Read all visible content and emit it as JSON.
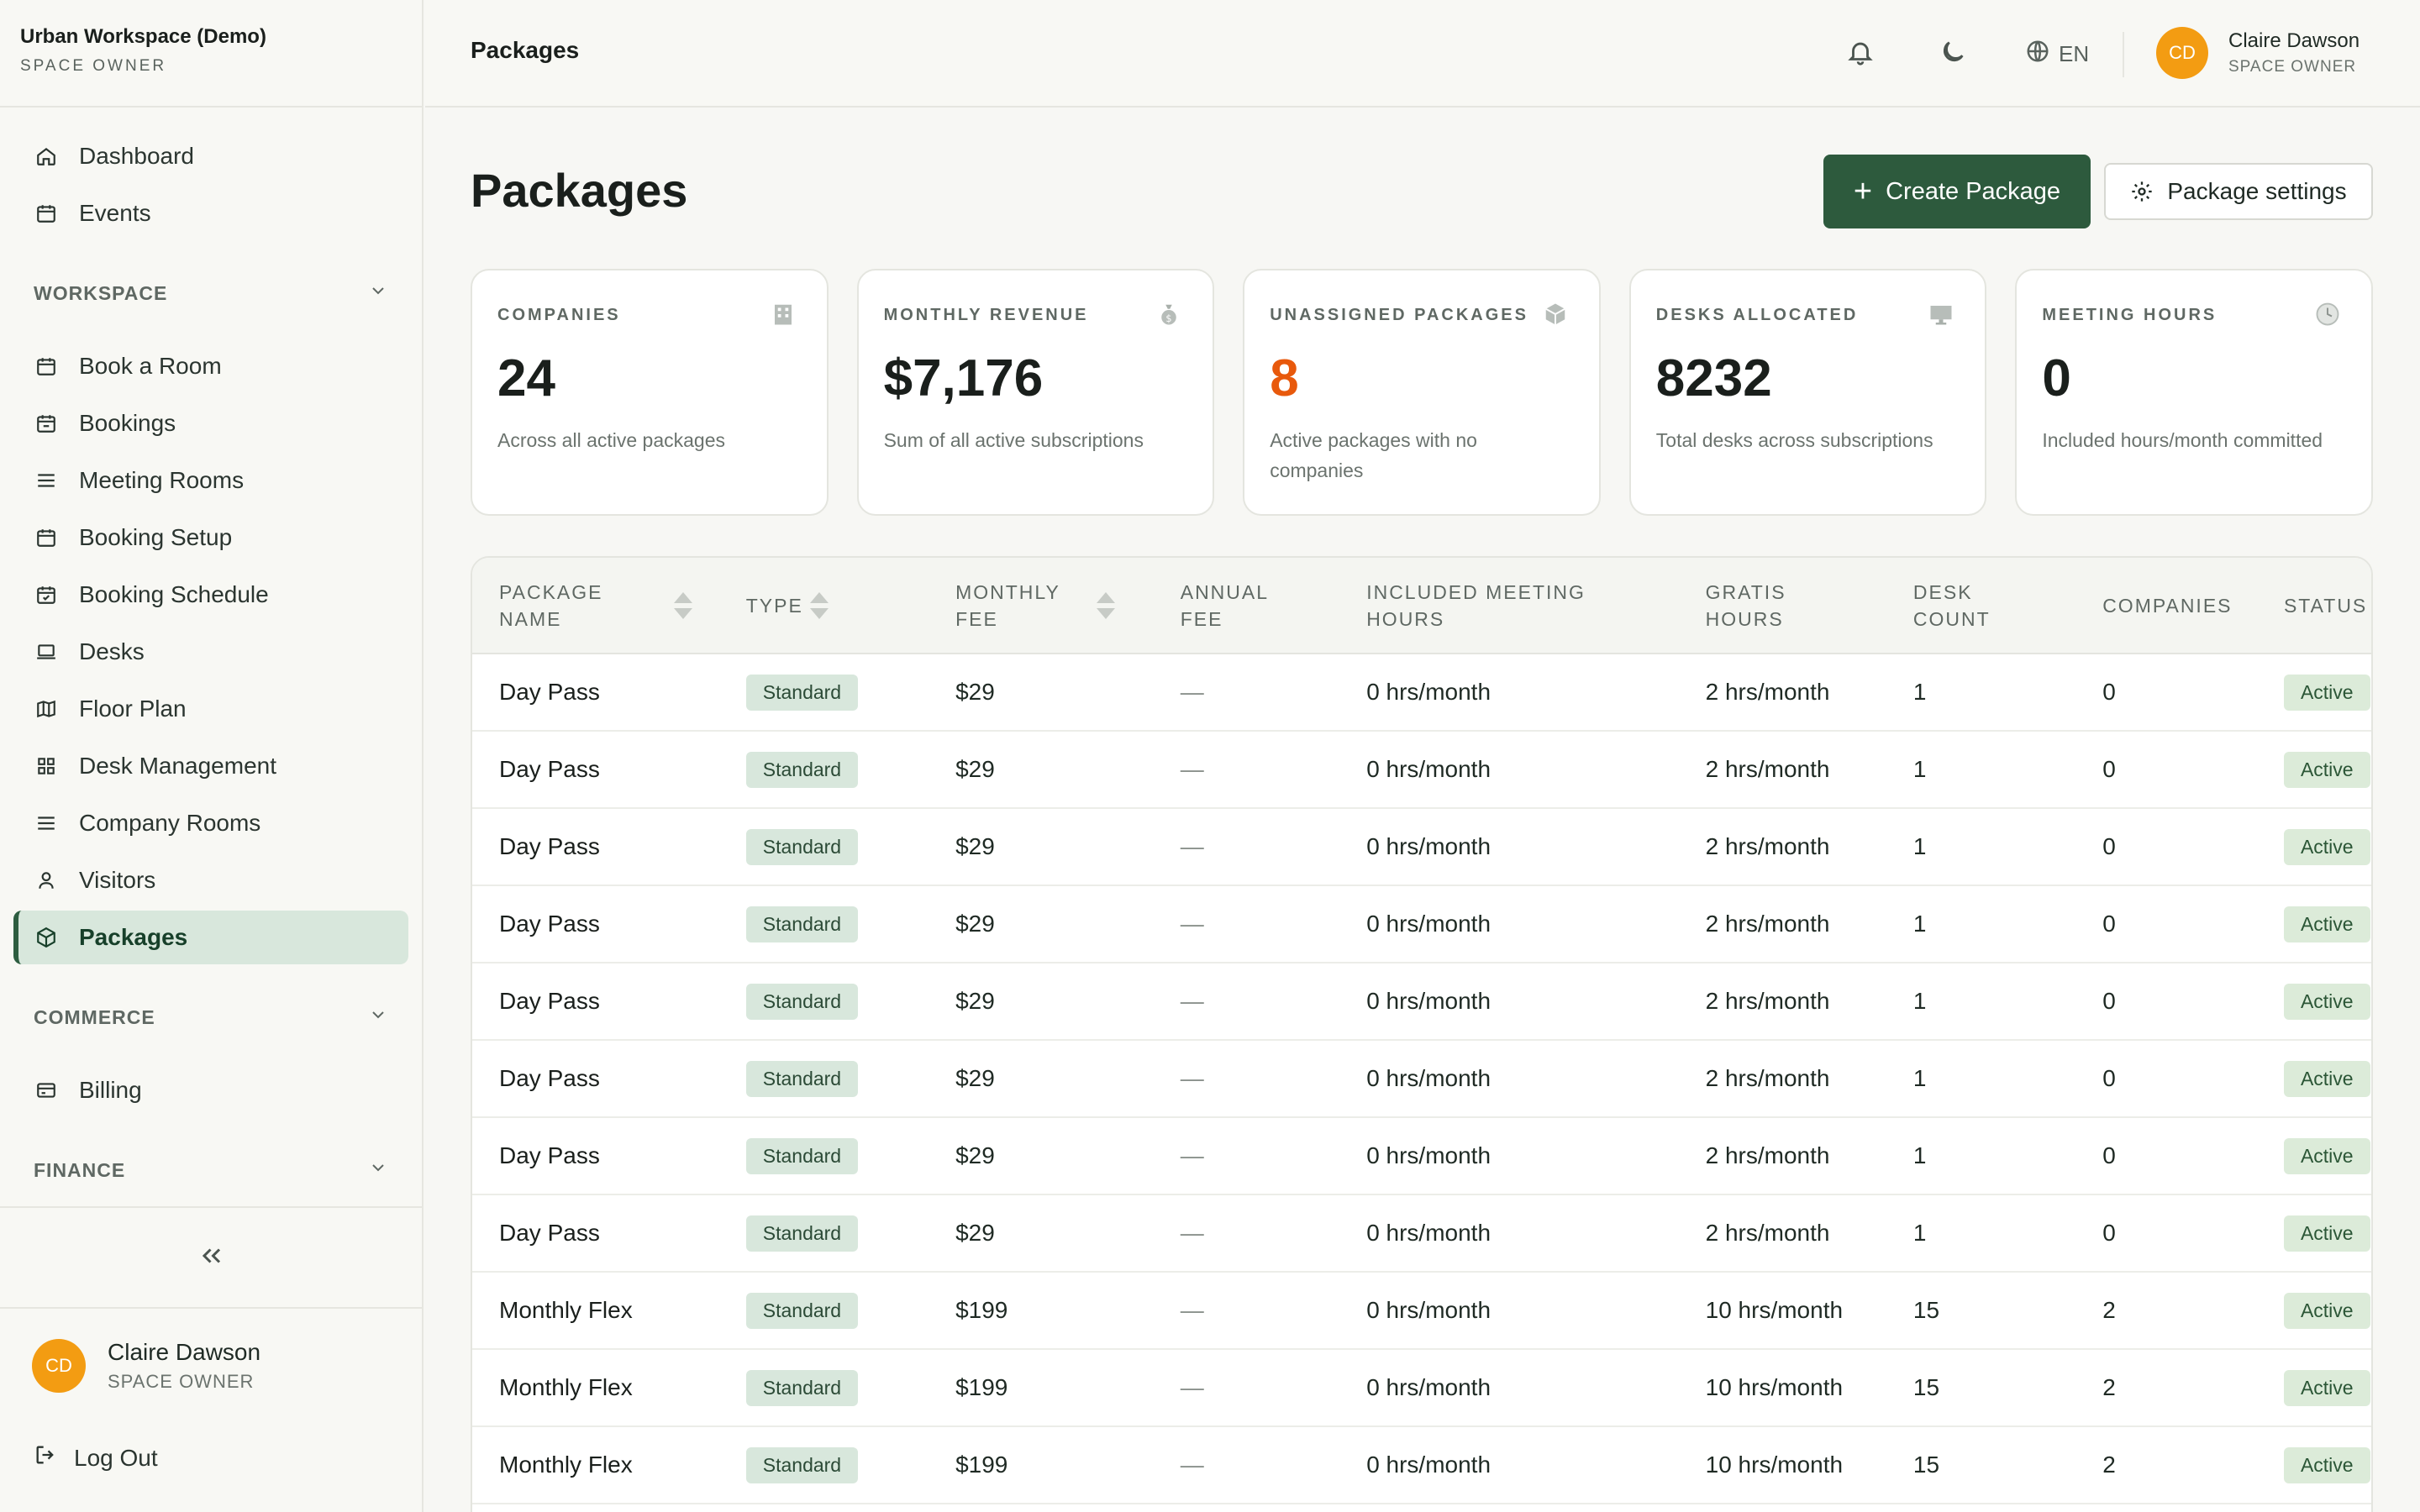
{
  "brand": {
    "name": "Urban Workspace (Demo)",
    "role": "SPACE OWNER"
  },
  "sidebar": {
    "top_items": [
      {
        "label": "Dashboard",
        "icon": "home-icon"
      },
      {
        "label": "Events",
        "icon": "calendar-icon"
      }
    ],
    "workspace": {
      "title": "WORKSPACE",
      "items": [
        {
          "label": "Book a Room",
          "icon": "calendar-icon"
        },
        {
          "label": "Bookings",
          "icon": "calendar-icon"
        },
        {
          "label": "Meeting Rooms",
          "icon": "list-icon"
        },
        {
          "label": "Booking Setup",
          "icon": "calendar-icon"
        },
        {
          "label": "Booking Schedule",
          "icon": "calendar-check-icon"
        },
        {
          "label": "Desks",
          "icon": "laptop-icon"
        },
        {
          "label": "Floor Plan",
          "icon": "map-icon"
        },
        {
          "label": "Desk Management",
          "icon": "grid-icon"
        },
        {
          "label": "Company Rooms",
          "icon": "list-icon"
        },
        {
          "label": "Visitors",
          "icon": "user-icon"
        },
        {
          "label": "Packages",
          "icon": "package-icon",
          "active": true
        }
      ]
    },
    "commerce": {
      "title": "COMMERCE",
      "items": [
        {
          "label": "Billing",
          "icon": "billing-icon"
        }
      ]
    },
    "finance": {
      "title": "FINANCE"
    },
    "user": {
      "initials": "CD",
      "name": "Claire Dawson",
      "role": "SPACE OWNER"
    },
    "logout": "Log Out"
  },
  "topbar": {
    "title": "Packages",
    "language": "EN",
    "user": {
      "initials": "CD",
      "name": "Claire Dawson",
      "role": "SPACE OWNER"
    }
  },
  "page": {
    "title": "Packages",
    "create_button": "Create Package",
    "settings_button": "Package settings"
  },
  "cards": [
    {
      "label": "COMPANIES",
      "value": "24",
      "desc": "Across all active packages",
      "icon": "building-icon"
    },
    {
      "label": "MONTHLY REVENUE",
      "value": "$7,176",
      "desc": "Sum of all active subscriptions",
      "icon": "money-bag-icon"
    },
    {
      "label": "UNASSIGNED PACKAGES",
      "value": "8",
      "desc": "Active packages with no companies",
      "icon": "box-icon",
      "value_color": "#e8590c"
    },
    {
      "label": "DESKS ALLOCATED",
      "value": "8232",
      "desc": "Total desks across subscriptions",
      "icon": "monitor-icon"
    },
    {
      "label": "MEETING HOURS",
      "value": "0",
      "desc": "Included hours/month committed",
      "icon": "clock-icon"
    }
  ],
  "table": {
    "headers": [
      "PACKAGE NAME",
      "TYPE",
      "MONTHLY FEE",
      "ANNUAL FEE",
      "INCLUDED MEETING HOURS",
      "GRATIS HOURS",
      "DESK COUNT",
      "COMPANIES",
      "STATUS"
    ],
    "rows": [
      {
        "name": "Day Pass",
        "type": "Standard",
        "monthly": "$29",
        "annual": "—",
        "meeting": "0 hrs/month",
        "gratis": "2 hrs/month",
        "desks": "1",
        "companies": "0",
        "status": "Active"
      },
      {
        "name": "Day Pass",
        "type": "Standard",
        "monthly": "$29",
        "annual": "—",
        "meeting": "0 hrs/month",
        "gratis": "2 hrs/month",
        "desks": "1",
        "companies": "0",
        "status": "Active"
      },
      {
        "name": "Day Pass",
        "type": "Standard",
        "monthly": "$29",
        "annual": "—",
        "meeting": "0 hrs/month",
        "gratis": "2 hrs/month",
        "desks": "1",
        "companies": "0",
        "status": "Active"
      },
      {
        "name": "Day Pass",
        "type": "Standard",
        "monthly": "$29",
        "annual": "—",
        "meeting": "0 hrs/month",
        "gratis": "2 hrs/month",
        "desks": "1",
        "companies": "0",
        "status": "Active"
      },
      {
        "name": "Day Pass",
        "type": "Standard",
        "monthly": "$29",
        "annual": "—",
        "meeting": "0 hrs/month",
        "gratis": "2 hrs/month",
        "desks": "1",
        "companies": "0",
        "status": "Active"
      },
      {
        "name": "Day Pass",
        "type": "Standard",
        "monthly": "$29",
        "annual": "—",
        "meeting": "0 hrs/month",
        "gratis": "2 hrs/month",
        "desks": "1",
        "companies": "0",
        "status": "Active"
      },
      {
        "name": "Day Pass",
        "type": "Standard",
        "monthly": "$29",
        "annual": "—",
        "meeting": "0 hrs/month",
        "gratis": "2 hrs/month",
        "desks": "1",
        "companies": "0",
        "status": "Active"
      },
      {
        "name": "Day Pass",
        "type": "Standard",
        "monthly": "$29",
        "annual": "—",
        "meeting": "0 hrs/month",
        "gratis": "2 hrs/month",
        "desks": "1",
        "companies": "0",
        "status": "Active"
      },
      {
        "name": "Monthly Flex",
        "type": "Standard",
        "monthly": "$199",
        "annual": "—",
        "meeting": "0 hrs/month",
        "gratis": "10 hrs/month",
        "desks": "15",
        "companies": "2",
        "status": "Active"
      },
      {
        "name": "Monthly Flex",
        "type": "Standard",
        "monthly": "$199",
        "annual": "—",
        "meeting": "0 hrs/month",
        "gratis": "10 hrs/month",
        "desks": "15",
        "companies": "2",
        "status": "Active"
      },
      {
        "name": "Monthly Flex",
        "type": "Standard",
        "monthly": "$199",
        "annual": "—",
        "meeting": "0 hrs/month",
        "gratis": "10 hrs/month",
        "desks": "15",
        "companies": "2",
        "status": "Active"
      }
    ]
  },
  "colors": {
    "accent": "#2d5a3d",
    "warning": "#e8590c",
    "avatar": "#f39c12"
  }
}
